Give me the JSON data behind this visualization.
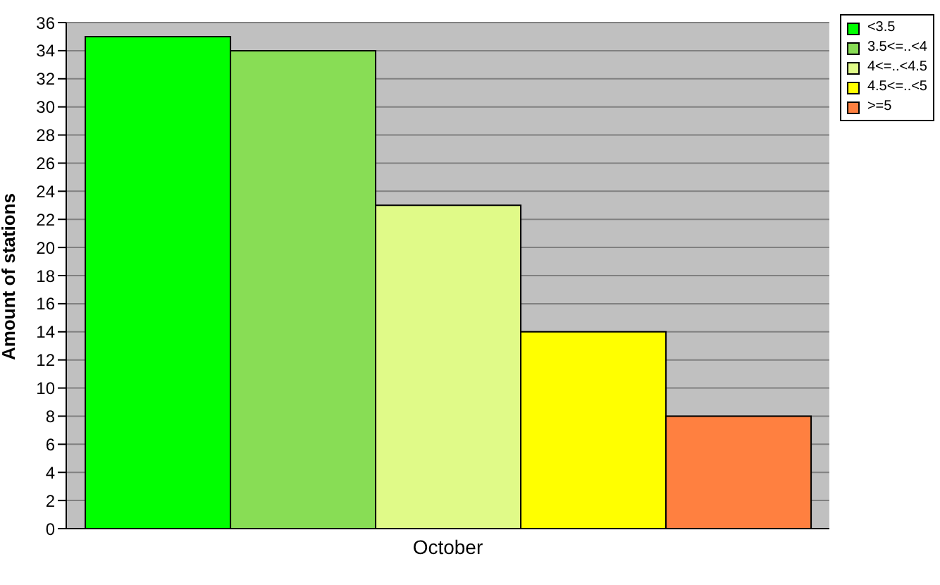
{
  "chart_data": {
    "type": "bar",
    "ylabel": "Amount of stations",
    "categories": [
      "October"
    ],
    "series": [
      {
        "name": "<3.5",
        "color": "#00ff00",
        "values": [
          35
        ]
      },
      {
        "name": "3.5<=..<4",
        "color": "#88dd55",
        "values": [
          34
        ]
      },
      {
        "name": "4<=..<4.5",
        "color": "#e0fa88",
        "values": [
          23
        ]
      },
      {
        "name": "4.5<=..<5",
        "color": "#ffff00",
        "values": [
          14
        ]
      },
      {
        "name": ">=5",
        "color": "#ff8040",
        "values": [
          8
        ]
      }
    ],
    "ylim": [
      0,
      36
    ],
    "yticks": [
      0,
      2,
      4,
      6,
      8,
      10,
      12,
      14,
      16,
      18,
      20,
      22,
      24,
      26,
      28,
      30,
      32,
      34,
      36
    ],
    "grid": "y",
    "legend": "top right"
  }
}
